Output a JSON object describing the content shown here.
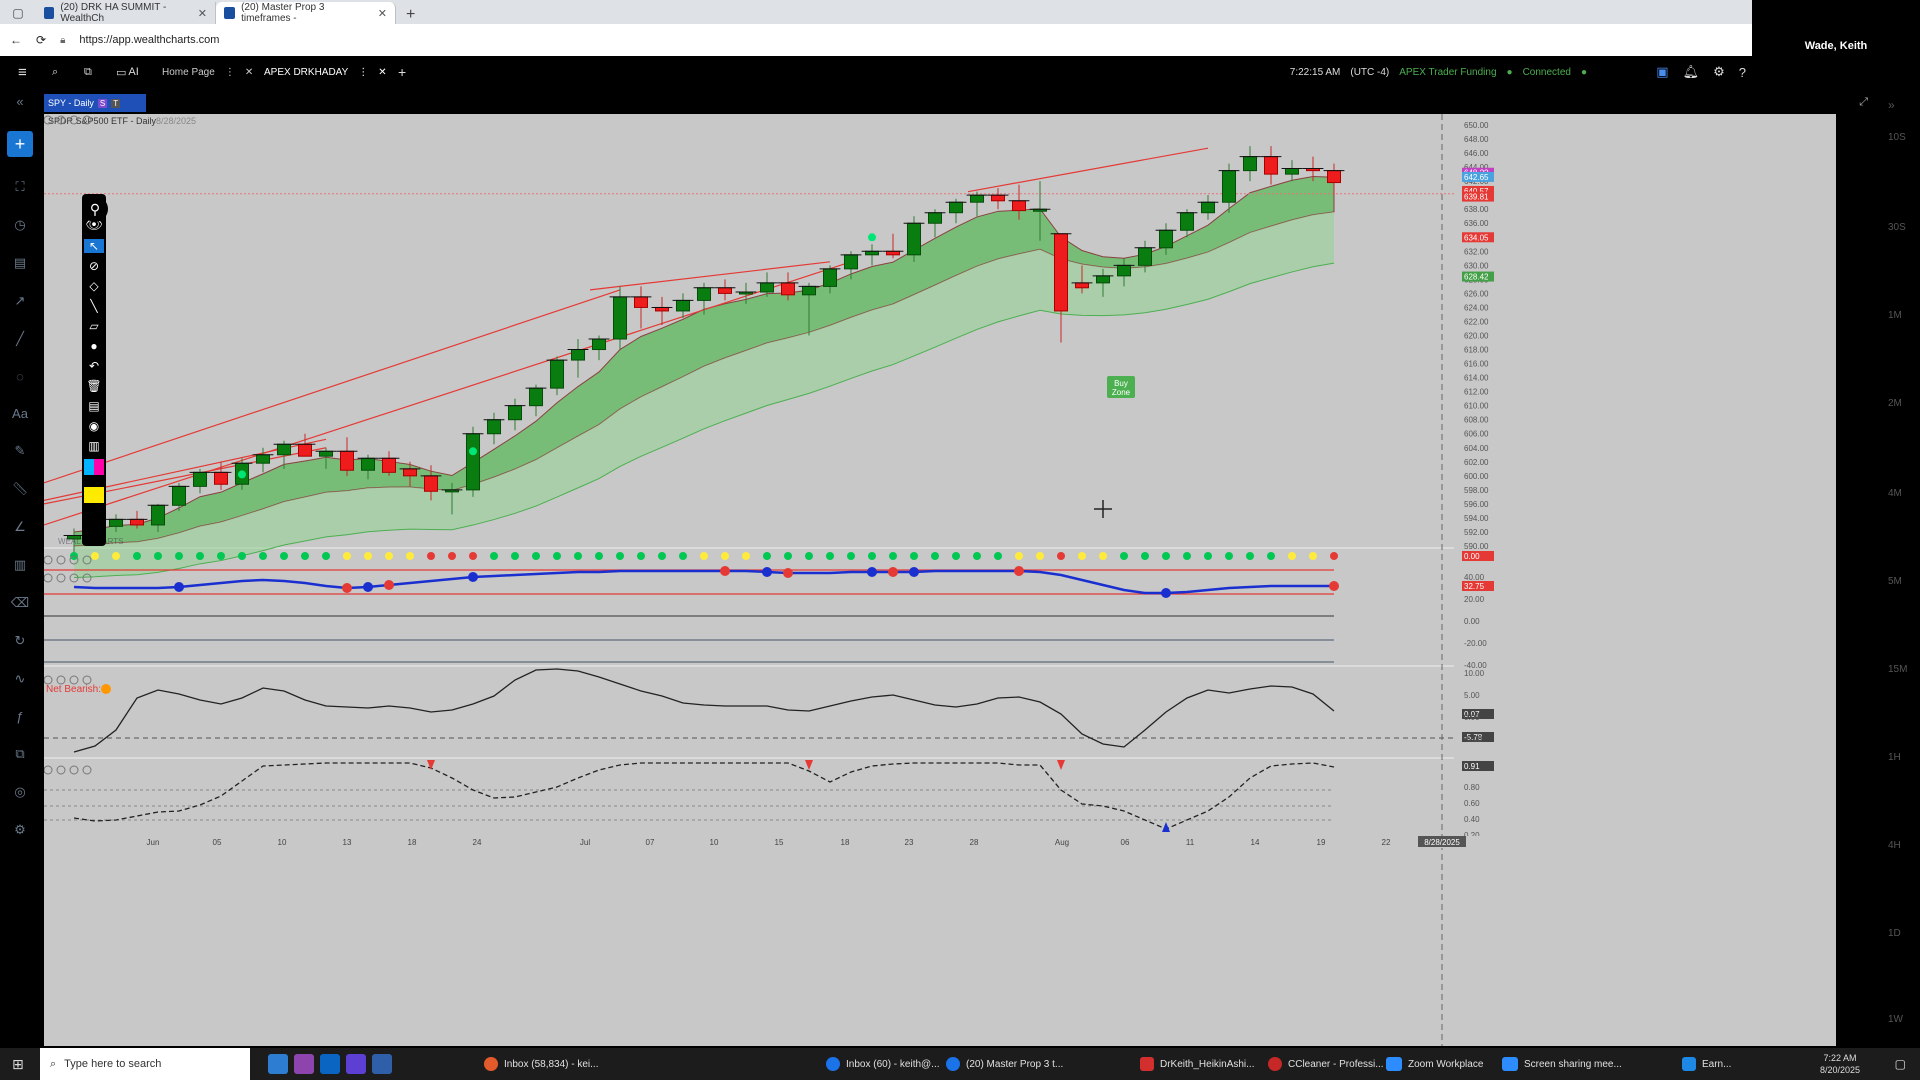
{
  "browser": {
    "tabs": [
      {
        "label": "(20) DRK HA SUMMIT - WealthCh"
      },
      {
        "label": "(20) Master Prop 3 timeframes - "
      }
    ],
    "url": "https://app.wealthcharts.com",
    "profile_name": "Wade, Keith"
  },
  "app": {
    "workspace_tabs": [
      {
        "label": "Home Page"
      },
      {
        "label": "APEX DRKHADAY"
      }
    ],
    "ai_label": "AI",
    "time": "7:22:15 AM",
    "tz": "(UTC -4)",
    "account": "APEX Trader Funding",
    "connection": "Connected",
    "symbol_badge": "SPY - Daily",
    "badge_s": "S",
    "badge_t": "T"
  },
  "chart": {
    "instrument_label": "SPDR S&P500 ETF - Daily",
    "date_label": "8/28/2025",
    "indicator_label": "Net Bearish:",
    "buy_zone_label": "Buy Zone",
    "watermark": "WEALTHCHARTS",
    "price_badges": [
      {
        "label": "648.??",
        "color": "#c040c0"
      },
      {
        "label": "642.65",
        "color": "#4aa3df"
      },
      {
        "label": "640.57",
        "color": "#e53935"
      },
      {
        "label": "639.81",
        "color": "#e53935"
      },
      {
        "label": "634.05",
        "color": "#e53935"
      },
      {
        "label": "628.42",
        "color": "#43a047"
      }
    ],
    "osc_badges": [
      {
        "label": "0.00",
        "color": "#e53935"
      },
      {
        "label": "32.75",
        "color": "#e53935"
      },
      {
        "label": "0.07",
        "color": "#444"
      },
      {
        "label": "-5.78",
        "color": "#444"
      },
      {
        "label": "0.91",
        "color": "#444"
      }
    ],
    "date_box": "8/28/2025"
  },
  "chart_data": {
    "type": "candlestick",
    "title": "SPDR S&P500 ETF - Daily",
    "y_ticks": [
      "650.00",
      "648.00",
      "646.00",
      "644.00",
      "642.00",
      "640.00",
      "638.00",
      "636.00",
      "634.00",
      "632.00",
      "630.00",
      "628.00",
      "626.00",
      "624.00",
      "622.00",
      "620.00",
      "618.00",
      "616.00",
      "614.00",
      "612.00",
      "610.00",
      "608.00",
      "606.00",
      "604.00",
      "602.00",
      "600.00",
      "598.00",
      "596.00",
      "594.00",
      "592.00",
      "590.00"
    ],
    "osc1_ticks": [
      "40.00",
      "20.00",
      "0.00",
      "-20.00",
      "-40.00"
    ],
    "osc2_ticks": [
      "10.00",
      "5.00",
      "0.00",
      "-5.00"
    ],
    "osc3_ticks": [
      "0.80",
      "0.60",
      "0.40",
      "0.20"
    ],
    "x_ticks": [
      "Jun",
      "05",
      "10",
      "13",
      "18",
      "24",
      "Jul",
      "07",
      "10",
      "15",
      "18",
      "23",
      "28",
      "Aug",
      "06",
      "11",
      "14",
      "19",
      "22",
      "2"
    ],
    "timeframes": [
      "10S",
      "30S",
      "1M",
      "2M",
      "4M",
      "5M",
      "15M",
      "1H",
      "4H",
      "1D",
      "1W"
    ],
    "ylim": [
      590,
      651
    ],
    "candles": [
      [
        591.0,
        592.5,
        589.0,
        591.5
      ],
      [
        591.5,
        593.5,
        590.5,
        592.8
      ],
      [
        592.8,
        594.5,
        592.0,
        593.8
      ],
      [
        593.8,
        595.0,
        592.5,
        593.0
      ],
      [
        593.0,
        596.0,
        592.0,
        595.8
      ],
      [
        595.8,
        599.0,
        595.0,
        598.5
      ],
      [
        598.5,
        601.0,
        597.5,
        600.5
      ],
      [
        600.5,
        602.0,
        598.0,
        598.8
      ],
      [
        598.8,
        602.5,
        598.0,
        601.8
      ],
      [
        601.8,
        604.0,
        600.5,
        603.0
      ],
      [
        603.0,
        605.0,
        601.0,
        604.5
      ],
      [
        604.5,
        606.0,
        603.0,
        602.8
      ],
      [
        602.8,
        604.0,
        601.0,
        603.5
      ],
      [
        603.5,
        605.5,
        600.0,
        600.8
      ],
      [
        600.8,
        603.0,
        599.5,
        602.5
      ],
      [
        602.5,
        603.5,
        600.0,
        600.5
      ],
      [
        601.0,
        602.0,
        598.5,
        600.0
      ],
      [
        600.0,
        601.5,
        596.5,
        597.8
      ],
      [
        597.8,
        599.0,
        594.5,
        598.0
      ],
      [
        598.0,
        607.0,
        597.0,
        606.0
      ],
      [
        606.0,
        609.0,
        604.5,
        608.0
      ],
      [
        608.0,
        611.0,
        606.5,
        610.0
      ],
      [
        610.0,
        613.0,
        608.5,
        612.5
      ],
      [
        612.5,
        617.0,
        611.5,
        616.5
      ],
      [
        616.5,
        619.5,
        614.0,
        618.0
      ],
      [
        618.0,
        620.0,
        616.5,
        619.5
      ],
      [
        619.5,
        627.0,
        618.0,
        625.5
      ],
      [
        625.5,
        627.0,
        621.0,
        624.0
      ],
      [
        624.0,
        625.5,
        621.5,
        623.5
      ],
      [
        623.5,
        626.0,
        622.5,
        625.0
      ],
      [
        625.0,
        627.5,
        623.0,
        626.8
      ],
      [
        626.8,
        628.0,
        625.0,
        626.0
      ],
      [
        626.0,
        627.5,
        624.5,
        626.2
      ],
      [
        626.2,
        629.0,
        625.5,
        627.5
      ],
      [
        627.5,
        629.0,
        625.0,
        625.8
      ],
      [
        625.8,
        627.5,
        620.0,
        627.0
      ],
      [
        627.0,
        630.0,
        626.0,
        629.5
      ],
      [
        629.5,
        632.0,
        628.0,
        631.5
      ],
      [
        631.5,
        633.0,
        630.0,
        632.0
      ],
      [
        632.0,
        634.5,
        631.0,
        631.5
      ],
      [
        631.5,
        637.0,
        630.5,
        636.0
      ],
      [
        636.0,
        638.0,
        634.0,
        637.5
      ],
      [
        637.5,
        639.5,
        636.0,
        639.0
      ],
      [
        639.0,
        640.5,
        637.0,
        640.0
      ],
      [
        640.0,
        641.0,
        638.0,
        639.2
      ],
      [
        639.2,
        641.5,
        636.5,
        637.8
      ],
      [
        637.8,
        642.0,
        633.5,
        638.0
      ],
      [
        634.5,
        634.5,
        619.0,
        623.5
      ],
      [
        627.5,
        630.0,
        626.0,
        626.8
      ],
      [
        627.5,
        629.5,
        625.5,
        628.5
      ],
      [
        628.5,
        631.0,
        627.0,
        630.0
      ],
      [
        630.0,
        633.5,
        629.0,
        632.5
      ],
      [
        632.5,
        636.0,
        631.5,
        635.0
      ],
      [
        635.0,
        638.0,
        634.0,
        637.5
      ],
      [
        637.5,
        640.0,
        636.5,
        639.0
      ],
      [
        639.0,
        644.5,
        637.5,
        643.5
      ],
      [
        643.5,
        647.0,
        642.0,
        645.5
      ],
      [
        645.5,
        647.0,
        641.5,
        643.0
      ],
      [
        643.0,
        645.0,
        642.0,
        643.8
      ],
      [
        643.8,
        645.5,
        642.0,
        643.5
      ],
      [
        643.5,
        644.5,
        640.0,
        641.8
      ]
    ]
  }
}
